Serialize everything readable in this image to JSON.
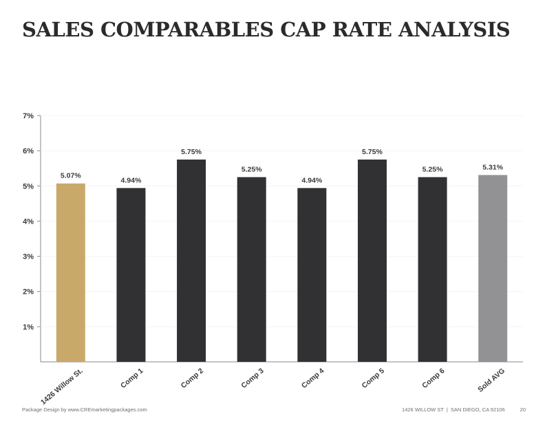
{
  "page": {
    "title": "SALES COMPARABLES CAP RATE ANALYSIS"
  },
  "footer": {
    "credit": "Package Design by www.CREmarketingpackages.com",
    "address": "1426 WILLOW ST",
    "separator": "|",
    "city": "SAN DIEGO, CA 92106",
    "page_number": "20"
  },
  "chart_data": {
    "type": "bar",
    "categories": [
      "1426 Willow St.",
      "Comp 1",
      "Comp 2",
      "Comp 3",
      "Comp 4",
      "Comp 5",
      "Comp 6",
      "Sold AVG"
    ],
    "values": [
      5.07,
      4.94,
      5.75,
      5.25,
      4.94,
      5.75,
      5.25,
      5.31
    ],
    "data_labels": [
      "5.07%",
      "4.94%",
      "5.75%",
      "5.25%",
      "4.94%",
      "5.75%",
      "5.25%",
      "5.31%"
    ],
    "bar_colors": [
      "#c9a96a",
      "#313133",
      "#313133",
      "#313133",
      "#313133",
      "#313133",
      "#313133",
      "#929295"
    ],
    "y_ticks": [
      1,
      2,
      3,
      4,
      5,
      6,
      7
    ],
    "y_tick_labels": [
      "1%",
      "2%",
      "3%",
      "4%",
      "5%",
      "6%",
      "7%"
    ],
    "ylim": [
      0,
      7
    ],
    "grid": false,
    "xlabel": "",
    "ylabel": ""
  }
}
